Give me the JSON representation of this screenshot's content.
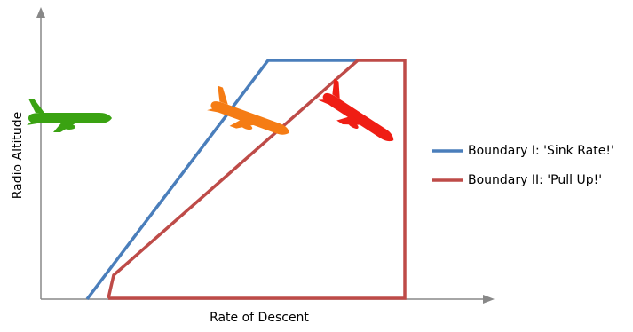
{
  "axes": {
    "x_label": "Rate of Descent",
    "y_label": "Radio Altitude"
  },
  "legend": [
    {
      "label": "Boundary I: 'Sink Rate!'",
      "color": "#4a7ebb"
    },
    {
      "label": "Boundary II: 'Pull Up!'",
      "color": "#be4b48"
    }
  ]
}
